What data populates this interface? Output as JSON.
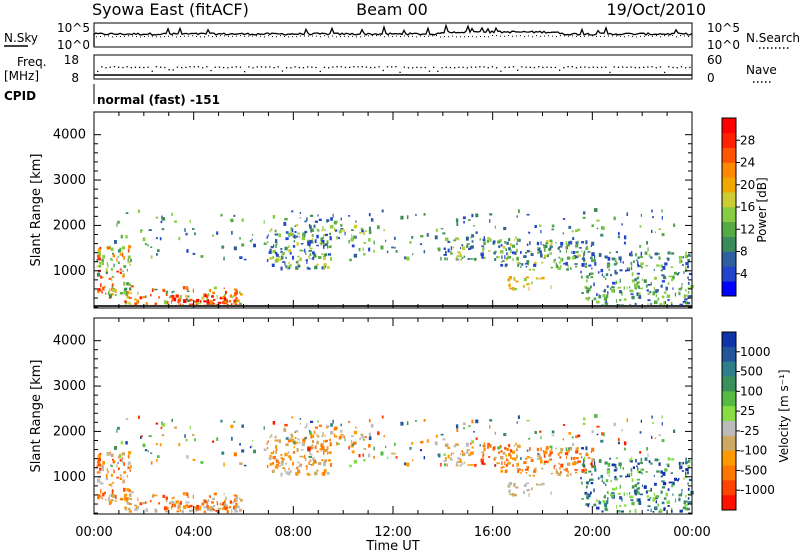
{
  "header": {
    "station": "Syowa East (fitACF)",
    "beam": "Beam 00",
    "date": "19/Oct/2010"
  },
  "strips": {
    "nsky_label": "N.Sky",
    "nsky_ticks": [
      "10^5",
      "10^0"
    ],
    "nsearch_label": "N.Search",
    "nsearch_ticks": [
      "10^5",
      "10^0"
    ],
    "freq_label_1": "Freq.",
    "freq_label_2": "[MHz]",
    "freq_ticks": [
      "18",
      "8"
    ],
    "nave_label": "Nave",
    "nave_ticks": [
      "60",
      "0"
    ],
    "cpid_label": "CPID",
    "cpid_value": "normal (fast) -151"
  },
  "chart_data": [
    {
      "type": "heatmap",
      "name": "power",
      "ylabel": "Slant Range [km]",
      "ylim": [
        180,
        4500
      ],
      "yticks": [
        "1000",
        "2000",
        "3000",
        "4000"
      ],
      "xlim": [
        0,
        24
      ],
      "xticks": [
        "00:00",
        "04:00",
        "08:00",
        "12:00",
        "16:00",
        "20:00",
        "00:00"
      ],
      "colorbar": {
        "label": "Power [dB]",
        "ticks": [
          "4",
          "8",
          "12",
          "16",
          "20",
          "24",
          "28"
        ],
        "colors": [
          "#0000ff",
          "#2244cc",
          "#2e5f9e",
          "#3b8a5c",
          "#55aa44",
          "#88cc44",
          "#cccc33",
          "#f0a800",
          "#ff8800",
          "#ff5500",
          "#ff2200",
          "#ff0000"
        ]
      }
    },
    {
      "type": "heatmap",
      "name": "velocity",
      "ylabel": "Slant Range [km]",
      "xlabel": "Time UT",
      "ylim": [
        180,
        4500
      ],
      "yticks": [
        "1000",
        "2000",
        "3000",
        "4000"
      ],
      "xlim": [
        0,
        24
      ],
      "xticks": [
        "00:00",
        "04:00",
        "08:00",
        "12:00",
        "16:00",
        "20:00",
        "00:00"
      ],
      "colorbar": {
        "label": "Velocity [m s⁻¹]",
        "ticks": [
          "1000",
          "500",
          "100",
          "25",
          "-25",
          "-100",
          "-500",
          "-1000"
        ],
        "colors": [
          "#1133aa",
          "#225599",
          "#2e7f8a",
          "#3a8f5a",
          "#55bb44",
          "#88dd44",
          "#bbbbbb",
          "#ccaa66",
          "#ff9900",
          "#ff7700",
          "#ff4400",
          "#ff1100"
        ]
      }
    }
  ]
}
